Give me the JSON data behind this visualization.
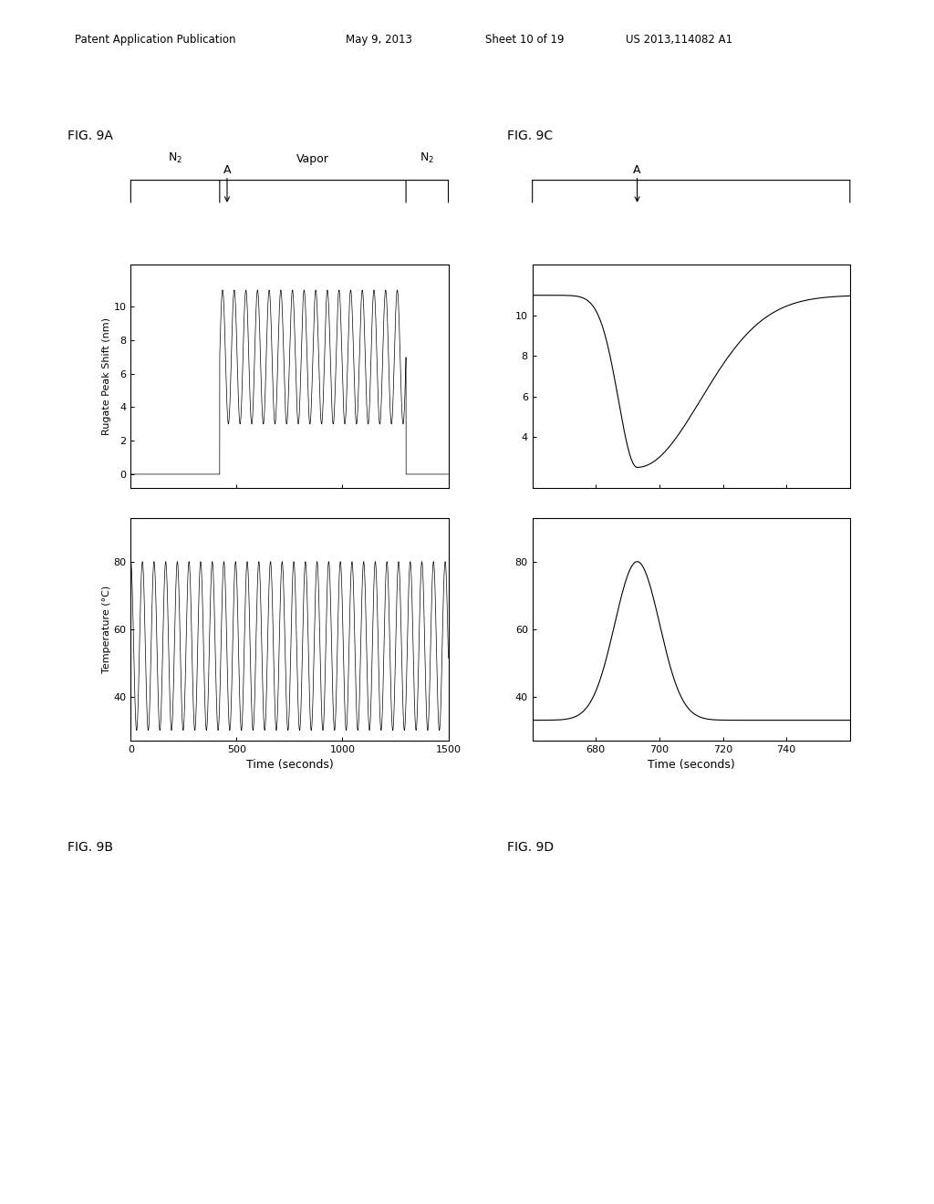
{
  "fig9A_title": "FIG. 9A",
  "fig9B_title": "FIG. 9B",
  "fig9C_title": "FIG. 9C",
  "fig9D_title": "FIG. 9D",
  "header_text": "Patent Application Publication",
  "header_date": "May 9, 2013",
  "header_sheet": "Sheet 10 of 19",
  "header_pub": "US 2013,114082 A1",
  "ylabel_9A": "Rugate Peak Shift (nm)",
  "ylabel_9B": "Temperature (°C)",
  "xlabel_9AB": "Time (seconds)",
  "xlabel_9CD": "Time (seconds)",
  "xmin_9AB": 0,
  "xmax_9AB": 1500,
  "xticks_9AB": [
    0,
    500,
    1000,
    1500
  ],
  "yticks_9A": [
    0,
    2,
    4,
    6,
    8,
    10
  ],
  "yticks_9B": [
    40,
    60,
    80
  ],
  "xmin_9CD": 660,
  "xmax_9CD": 760,
  "xticks_9CD": [
    680,
    700,
    720,
    740
  ],
  "yticks_9C": [
    4,
    6,
    8,
    10
  ],
  "yticks_9D": [
    40,
    60,
    80
  ],
  "vapor_start": 420,
  "vapor_end": 1300,
  "background_color": "#ffffff",
  "line_color": "#000000"
}
